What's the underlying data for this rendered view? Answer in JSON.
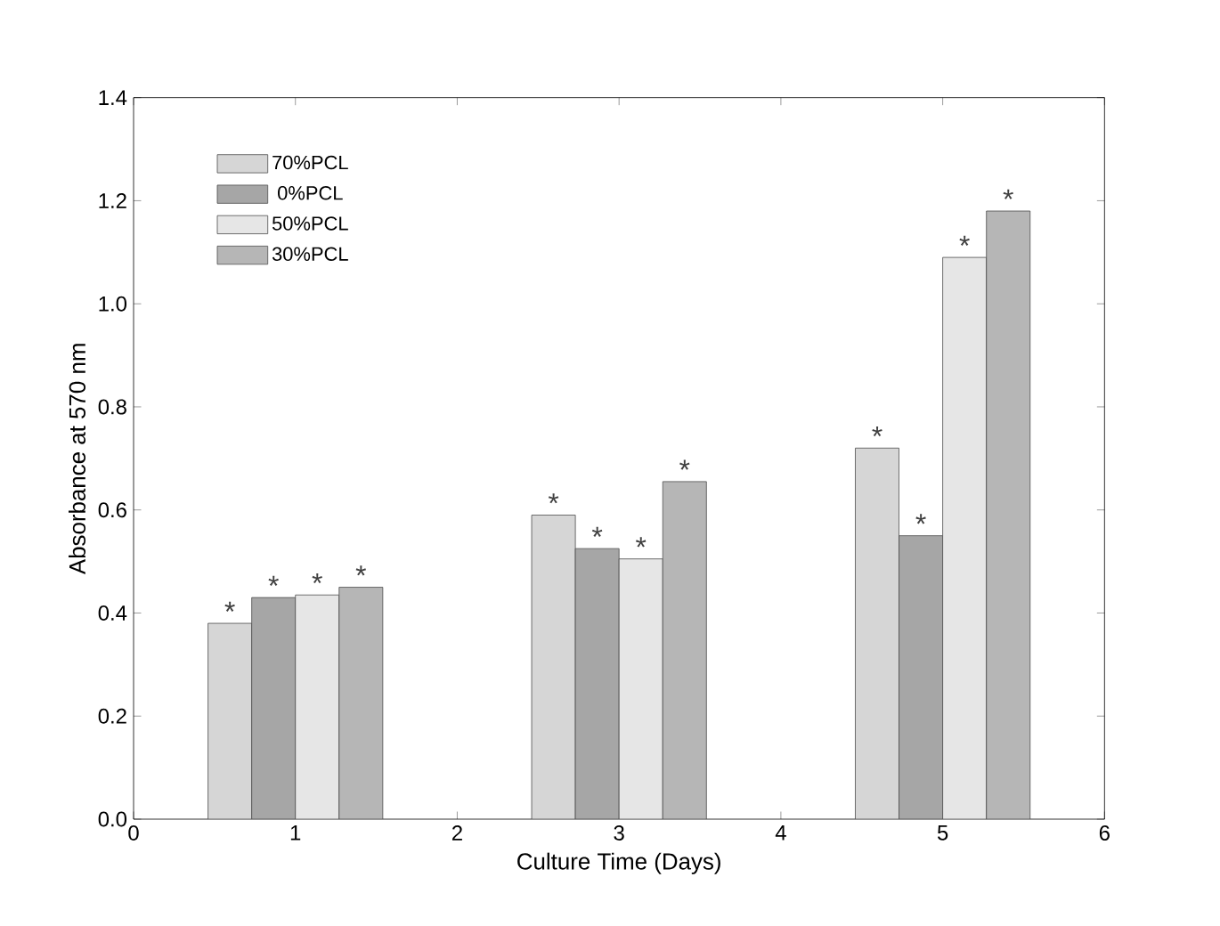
{
  "chart_data": {
    "type": "bar",
    "xlabel": "Culture Time (Days)",
    "ylabel": "Absorbance at 570 nm",
    "x": [
      1,
      3,
      5
    ],
    "series": [
      {
        "name": "70%PCL",
        "color": "#d6d6d6",
        "values": [
          0.38,
          0.59,
          0.72
        ],
        "value_labels": [
          "*",
          "*",
          "*"
        ]
      },
      {
        "name": "0%PCL",
        "color": "#a6a6a6",
        "values": [
          0.43,
          0.525,
          0.55
        ],
        "value_labels": [
          "*",
          "*",
          "*"
        ]
      },
      {
        "name": "50%PCL",
        "color": "#e6e6e6",
        "values": [
          0.435,
          0.505,
          1.09
        ],
        "value_labels": [
          "*",
          "*",
          "*"
        ]
      },
      {
        "name": "30%PCL",
        "color": "#b6b6b6",
        "values": [
          0.45,
          0.655,
          1.18
        ],
        "value_labels": [
          "*",
          "*",
          "*"
        ]
      }
    ],
    "xlim": [
      0,
      6
    ],
    "xticks": [
      0,
      1,
      2,
      3,
      4,
      5,
      6
    ],
    "ylim": [
      0,
      1.4
    ],
    "yticks": [
      {
        "value": 0,
        "label": "0.0"
      },
      {
        "value": 0.2,
        "label": "0.2"
      },
      {
        "value": 0.4,
        "label": "0.4"
      },
      {
        "value": 0.6,
        "label": "0.6"
      },
      {
        "value": 0.8,
        "label": "0.8"
      },
      {
        "value": 1.0,
        "label": "1.0"
      },
      {
        "value": 1.2,
        "label": "1.2"
      },
      {
        "value": 1.4,
        "label": "1.4"
      }
    ],
    "legend": "top left",
    "grid": false
  }
}
